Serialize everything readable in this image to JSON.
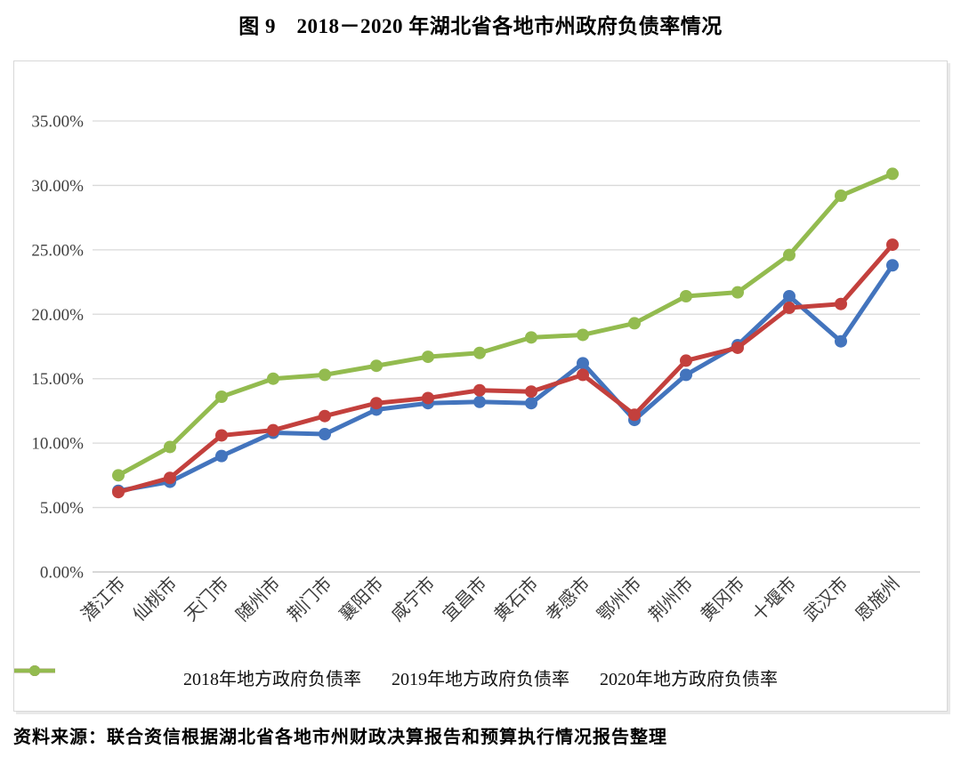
{
  "page": {
    "title": "图 9　2018－2020 年湖北省各地市州政府负债率情况",
    "source_note": "资料来源：联合资信根据湖北省各地市州财政决算报告和预算执行情况报告整理"
  },
  "chart_data": {
    "type": "line",
    "title": "图 9　2018－2020 年湖北省各地市州政府负债率情况",
    "categories": [
      "潜江市",
      "仙桃市",
      "天门市",
      "随州市",
      "荆门市",
      "襄阳市",
      "咸宁市",
      "宜昌市",
      "黄石市",
      "孝感市",
      "鄂州市",
      "荆州市",
      "黄冈市",
      "十堰市",
      "武汉市",
      "恩施州"
    ],
    "series": [
      {
        "name": "2018年地方政府负债率",
        "color": "#4374BD",
        "values": [
          6.3,
          7.0,
          9.0,
          10.8,
          10.7,
          12.6,
          13.1,
          13.2,
          13.1,
          16.2,
          11.8,
          15.3,
          17.6,
          21.4,
          17.9,
          23.8
        ]
      },
      {
        "name": "2019年地方政府负债率",
        "color": "#C3403D",
        "values": [
          6.2,
          7.3,
          10.6,
          11.0,
          12.1,
          13.1,
          13.5,
          14.1,
          14.0,
          15.3,
          12.2,
          16.4,
          17.4,
          20.5,
          20.8,
          25.4
        ]
      },
      {
        "name": "2020年地方政府负债率",
        "color": "#93BB4F",
        "values": [
          7.5,
          9.7,
          13.6,
          15.0,
          15.3,
          16.0,
          16.7,
          17.0,
          18.2,
          18.4,
          19.3,
          21.4,
          21.7,
          24.6,
          29.2,
          30.9
        ]
      }
    ],
    "xlabel": "",
    "ylabel": "",
    "ylim": [
      0,
      35
    ],
    "ytick_step": 5,
    "ytick_format": "0.00%",
    "grid": true,
    "legend_position": "bottom",
    "marker": "circle"
  }
}
